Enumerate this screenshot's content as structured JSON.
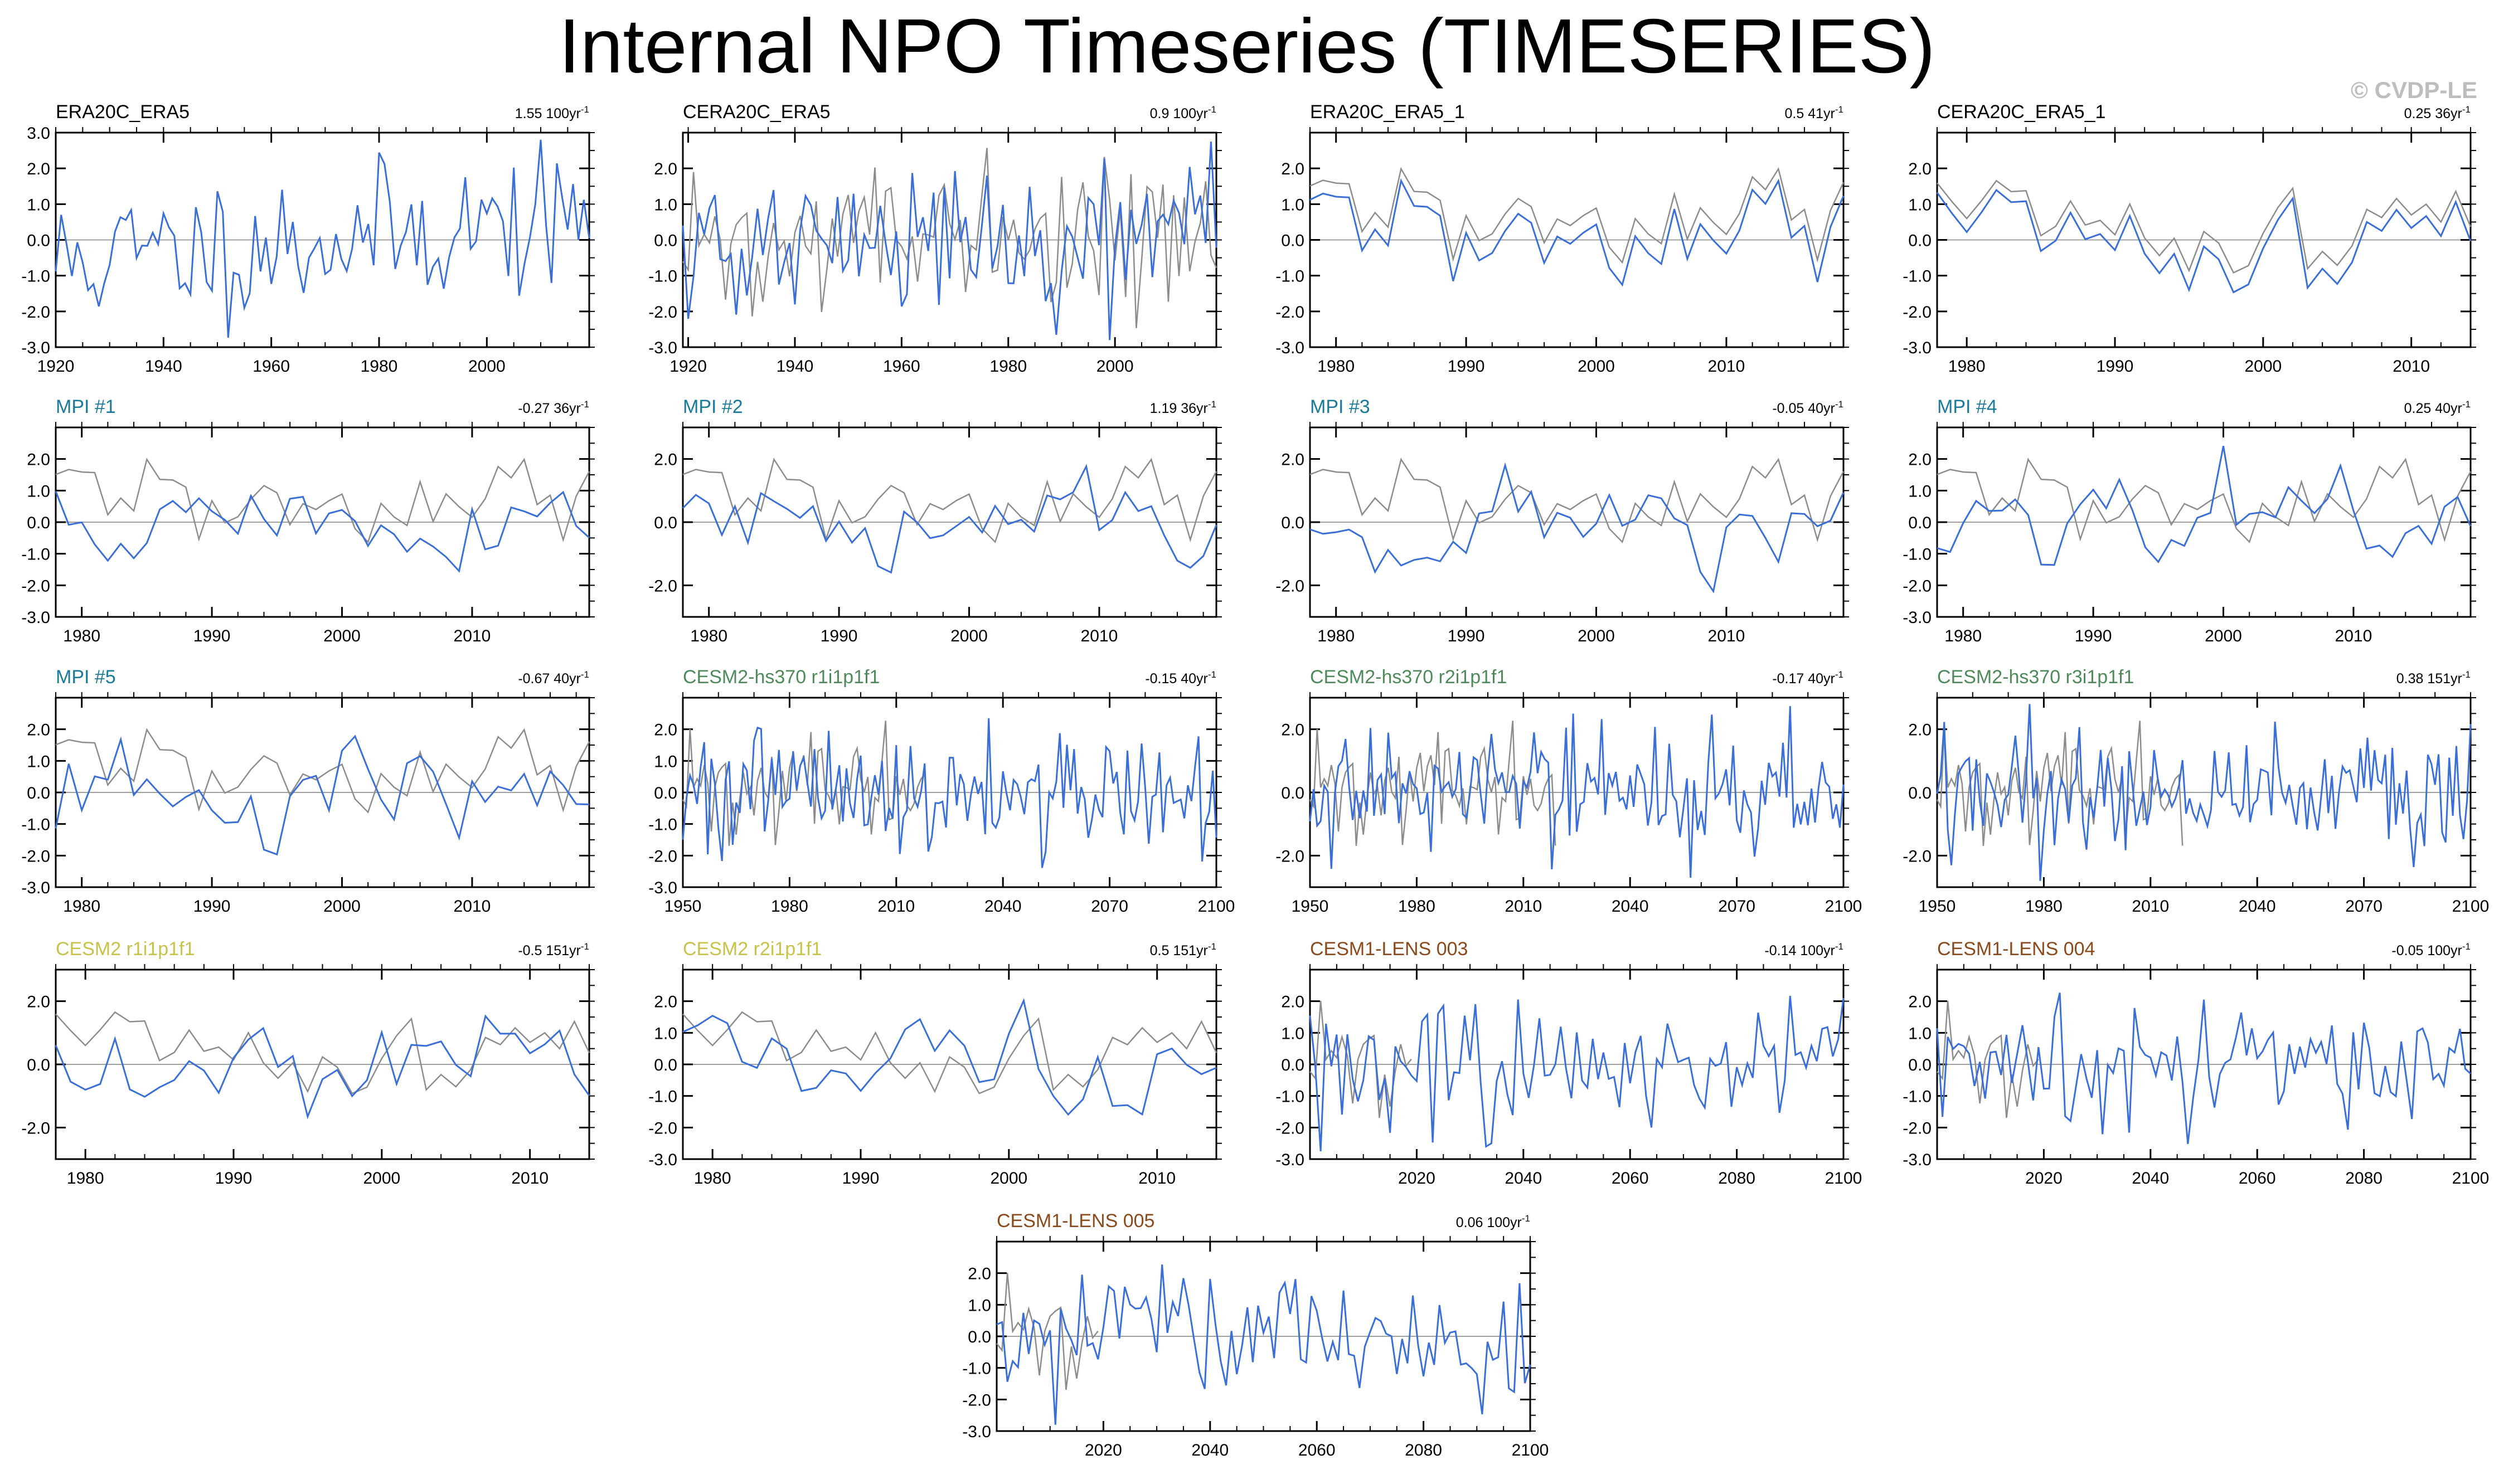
{
  "title": "Internal NPO Timeseries (TIMESERIES)",
  "watermark": "© CVDP-LE",
  "colors": {
    "member_line": "#3a6fd8",
    "obs_line": "#8c8c8c",
    "zero_line": "#a0a0a0",
    "label_black": "#000000",
    "label_mpi": "#1a7a9a",
    "label_cesm2_hs370": "#4f8a5c",
    "label_cesm2": "#c8c24a",
    "label_cesm1_lens": "#8b4a1b"
  },
  "chart_data": [
    {
      "type": "line",
      "title": "ERA20C_ERA5",
      "title_color": "label_black",
      "trend": "1.55 100yr",
      "trend_sup": "-1",
      "x_range": [
        1920,
        2019
      ],
      "x_ticks": [
        1920,
        1940,
        1960,
        1980,
        2000
      ],
      "y_range": [
        -3,
        3
      ],
      "y_ticks": [
        "3.0",
        "2.0",
        "1.0",
        "0.0",
        "-1.0",
        "-2.0",
        "-3.0"
      ],
      "y_values": [
        3,
        2,
        1,
        0,
        -1,
        -2,
        -3
      ],
      "series": [
        {
          "seed": 11,
          "amp": 1.0,
          "trend": 0.6,
          "x_start": 1920,
          "x_end": 2019
        }
      ]
    },
    {
      "type": "line",
      "title": "CERA20C_ERA5",
      "title_color": "label_black",
      "trend": "0.9 100yr",
      "trend_sup": "-1",
      "x_range": [
        1919,
        2019
      ],
      "x_ticks": [
        1920,
        1940,
        1960,
        1980,
        2000
      ],
      "y_range": [
        -3,
        3
      ],
      "y_ticks": [
        "2.0",
        "1.0",
        "0.0",
        "-1.0",
        "-2.0",
        "-3.0"
      ],
      "y_values": [
        2,
        1,
        0,
        -1,
        -2,
        -3
      ],
      "series": [
        {
          "seed": 21,
          "amp": 1.1,
          "trend": 0.35,
          "x_start": 1919,
          "x_end": 2019
        },
        {
          "seed": 22,
          "amp": 1.0,
          "trend": 0.35,
          "x_start": 1919,
          "x_end": 2019,
          "obs": true
        }
      ]
    },
    {
      "type": "line",
      "title": "ERA20C_ERA5_1",
      "title_color": "label_black",
      "trend": "0.5 41yr",
      "trend_sup": "-1",
      "x_range": [
        1978,
        2019
      ],
      "x_ticks": [
        1980,
        1990,
        2000,
        2010
      ],
      "y_range": [
        -3,
        3
      ],
      "y_ticks": [
        "2.0",
        "1.0",
        "0.0",
        "-1.0",
        "-2.0",
        "-3.0"
      ],
      "y_values": [
        2,
        1,
        0,
        -1,
        -2,
        -3
      ],
      "series": [
        {
          "seed": 31,
          "amp": 1.0,
          "trend": 0.0,
          "x_start": 1978,
          "x_end": 2019,
          "smooth": true
        },
        {
          "seed": 31,
          "amp": 0.9,
          "trend": 0.0,
          "x_start": 1978,
          "x_end": 2019,
          "obs": true,
          "offset": 0.5,
          "smooth": true
        }
      ]
    },
    {
      "type": "line",
      "title": "CERA20C_ERA5_1",
      "title_color": "label_black",
      "trend": "0.25 36yr",
      "trend_sup": "-1",
      "x_range": [
        1978,
        2014
      ],
      "x_ticks": [
        1980,
        1990,
        2000,
        2010
      ],
      "y_range": [
        -3,
        3
      ],
      "y_ticks": [
        "2.0",
        "1.0",
        "0.0",
        "-1.0",
        "-2.0",
        "-3.0"
      ],
      "y_values": [
        2,
        1,
        0,
        -1,
        -2,
        -3
      ],
      "series": [
        {
          "seed": 41,
          "amp": 1.0,
          "trend": 0.0,
          "x_start": 1978,
          "x_end": 2014,
          "smooth": true
        },
        {
          "seed": 41,
          "amp": 0.9,
          "trend": 0.0,
          "x_start": 1978,
          "x_end": 2014,
          "obs": true,
          "offset": 0.4,
          "smooth": true
        }
      ]
    },
    {
      "type": "line",
      "title": "MPI #1",
      "title_color": "label_mpi",
      "trend": "-0.27 36yr",
      "trend_sup": "-1",
      "x_range": [
        1978,
        2019
      ],
      "x_ticks": [
        1980,
        1990,
        2000,
        2010
      ],
      "y_range": [
        -3,
        3
      ],
      "y_ticks": [
        "2.0",
        "1.0",
        "0.0",
        "-1.0",
        "-2.0",
        "-3.0"
      ],
      "y_values": [
        2,
        1,
        0,
        -1,
        -2,
        -3
      ],
      "series": [
        {
          "seed": 51,
          "amp": 0.9,
          "trend": 0.0,
          "x_start": 1978,
          "x_end": 2019,
          "smooth": true
        },
        {
          "seed": 31,
          "amp": 0.9,
          "trend": 0.0,
          "x_start": 1978,
          "x_end": 2019,
          "obs": true,
          "offset": 0.5,
          "smooth": true
        }
      ]
    },
    {
      "type": "line",
      "title": "MPI #2",
      "title_color": "label_mpi",
      "trend": "1.19 36yr",
      "trend_sup": "-1",
      "x_range": [
        1978,
        2019
      ],
      "x_ticks": [
        1980,
        1990,
        2000,
        2010
      ],
      "y_range": [
        -3,
        3
      ],
      "y_ticks": [
        "2.0",
        "0.0",
        "-2.0"
      ],
      "y_values": [
        2,
        0,
        -2
      ],
      "series": [
        {
          "seed": 61,
          "amp": 0.9,
          "trend": 0.0,
          "x_start": 1978,
          "x_end": 2019,
          "smooth": true
        },
        {
          "seed": 31,
          "amp": 0.9,
          "trend": 0.0,
          "x_start": 1978,
          "x_end": 2019,
          "obs": true,
          "offset": 0.5,
          "smooth": true
        }
      ]
    },
    {
      "type": "line",
      "title": "MPI #3",
      "title_color": "label_mpi",
      "trend": "-0.05 40yr",
      "trend_sup": "-1",
      "x_range": [
        1978,
        2019
      ],
      "x_ticks": [
        1980,
        1990,
        2000,
        2010
      ],
      "y_range": [
        -3,
        3
      ],
      "y_ticks": [
        "2.0",
        "0.0",
        "-2.0"
      ],
      "y_values": [
        2,
        0,
        -2
      ],
      "series": [
        {
          "seed": 71,
          "amp": 0.9,
          "trend": 0.0,
          "x_start": 1978,
          "x_end": 2019,
          "smooth": true
        },
        {
          "seed": 31,
          "amp": 0.9,
          "trend": 0.0,
          "x_start": 1978,
          "x_end": 2019,
          "obs": true,
          "offset": 0.5,
          "smooth": true
        }
      ]
    },
    {
      "type": "line",
      "title": "MPI #4",
      "title_color": "label_mpi",
      "trend": "0.25 40yr",
      "trend_sup": "-1",
      "x_range": [
        1978,
        2019
      ],
      "x_ticks": [
        1980,
        1990,
        2000,
        2010
      ],
      "y_range": [
        -3,
        3
      ],
      "y_ticks": [
        "2.0",
        "1.0",
        "0.0",
        "-1.0",
        "-2.0",
        "-3.0"
      ],
      "y_values": [
        2,
        1,
        0,
        -1,
        -2,
        -3
      ],
      "series": [
        {
          "seed": 81,
          "amp": 0.9,
          "trend": 0.0,
          "x_start": 1978,
          "x_end": 2019,
          "smooth": true
        },
        {
          "seed": 31,
          "amp": 0.9,
          "trend": 0.0,
          "x_start": 1978,
          "x_end": 2019,
          "obs": true,
          "offset": 0.5,
          "smooth": true
        }
      ]
    },
    {
      "type": "line",
      "title": "MPI #5",
      "title_color": "label_mpi",
      "trend": "-0.67 40yr",
      "trend_sup": "-1",
      "x_range": [
        1978,
        2019
      ],
      "x_ticks": [
        1980,
        1990,
        2000,
        2010
      ],
      "y_range": [
        -3,
        3
      ],
      "y_ticks": [
        "2.0",
        "1.0",
        "0.0",
        "-1.0",
        "-2.0",
        "-3.0"
      ],
      "y_values": [
        2,
        1,
        0,
        -1,
        -2,
        -3
      ],
      "series": [
        {
          "seed": 91,
          "amp": 0.9,
          "trend": 0.0,
          "x_start": 1978,
          "x_end": 2019,
          "smooth": true
        },
        {
          "seed": 31,
          "amp": 0.9,
          "trend": 0.0,
          "x_start": 1978,
          "x_end": 2019,
          "obs": true,
          "offset": 0.5,
          "smooth": true
        }
      ]
    },
    {
      "type": "line",
      "title": "CESM2-hs370 r1i1p1f1",
      "title_color": "label_cesm2_hs370",
      "trend": "-0.15 40yr",
      "trend_sup": "-1",
      "x_range": [
        1950,
        2100
      ],
      "x_ticks": [
        1950,
        1980,
        2010,
        2040,
        2070,
        2100
      ],
      "y_range": [
        -3,
        3
      ],
      "y_ticks": [
        "2.0",
        "1.0",
        "0.0",
        "-1.0",
        "-2.0",
        "-3.0"
      ],
      "y_values": [
        2,
        1,
        0,
        -1,
        -2,
        -3
      ],
      "series": [
        {
          "seed": 101,
          "amp": 1.0,
          "trend": 0.0,
          "x_start": 1950,
          "x_end": 2100
        },
        {
          "seed": 22,
          "amp": 0.9,
          "trend": 0.0,
          "x_start": 1950,
          "x_end": 2019,
          "obs": true
        }
      ]
    },
    {
      "type": "line",
      "title": "CESM2-hs370 r2i1p1f1",
      "title_color": "label_cesm2_hs370",
      "trend": "-0.17 40yr",
      "trend_sup": "-1",
      "x_range": [
        1950,
        2100
      ],
      "x_ticks": [
        1950,
        1980,
        2010,
        2040,
        2070,
        2100
      ],
      "y_range": [
        -3,
        3
      ],
      "y_ticks": [
        "2.0",
        "0.0",
        "-2.0"
      ],
      "y_values": [
        2,
        0,
        -2
      ],
      "series": [
        {
          "seed": 111,
          "amp": 1.0,
          "trend": 0.0,
          "x_start": 1950,
          "x_end": 2100
        },
        {
          "seed": 22,
          "amp": 0.9,
          "trend": 0.0,
          "x_start": 1950,
          "x_end": 2019,
          "obs": true
        }
      ]
    },
    {
      "type": "line",
      "title": "CESM2-hs370 r3i1p1f1",
      "title_color": "label_cesm2_hs370",
      "trend": "0.38 151yr",
      "trend_sup": "-1",
      "x_range": [
        1950,
        2100
      ],
      "x_ticks": [
        1950,
        1980,
        2010,
        2040,
        2070,
        2100
      ],
      "y_range": [
        -3,
        3
      ],
      "y_ticks": [
        "2.0",
        "0.0",
        "-2.0"
      ],
      "y_values": [
        2,
        0,
        -2
      ],
      "series": [
        {
          "seed": 121,
          "amp": 1.0,
          "trend": 0.0,
          "x_start": 1950,
          "x_end": 2100
        },
        {
          "seed": 22,
          "amp": 0.9,
          "trend": 0.0,
          "x_start": 1950,
          "x_end": 2019,
          "obs": true
        }
      ]
    },
    {
      "type": "line",
      "title": "CESM2 r1i1p1f1",
      "title_color": "label_cesm2",
      "trend": "-0.5 151yr",
      "trend_sup": "-1",
      "x_range": [
        1978,
        2014
      ],
      "x_ticks": [
        1980,
        1990,
        2000,
        2010
      ],
      "y_range": [
        -3,
        3
      ],
      "y_ticks": [
        "2.0",
        "0.0",
        "-2.0"
      ],
      "y_values": [
        2,
        0,
        -2
      ],
      "series": [
        {
          "seed": 131,
          "amp": 0.9,
          "trend": 0.0,
          "x_start": 1978,
          "x_end": 2014,
          "smooth": true
        },
        {
          "seed": 41,
          "amp": 0.9,
          "trend": 0.0,
          "x_start": 1978,
          "x_end": 2014,
          "obs": true,
          "offset": 0.4,
          "smooth": true
        }
      ]
    },
    {
      "type": "line",
      "title": "CESM2 r2i1p1f1",
      "title_color": "label_cesm2",
      "trend": "0.5 151yr",
      "trend_sup": "-1",
      "x_range": [
        1978,
        2014
      ],
      "x_ticks": [
        1980,
        1990,
        2000,
        2010
      ],
      "y_range": [
        -3,
        3
      ],
      "y_ticks": [
        "2.0",
        "1.0",
        "0.0",
        "-1.0",
        "-2.0",
        "-3.0"
      ],
      "y_values": [
        2,
        1,
        0,
        -1,
        -2,
        -3
      ],
      "series": [
        {
          "seed": 141,
          "amp": 0.9,
          "trend": 0.0,
          "x_start": 1978,
          "x_end": 2014,
          "smooth": true
        },
        {
          "seed": 41,
          "amp": 0.9,
          "trend": 0.0,
          "x_start": 1978,
          "x_end": 2014,
          "obs": true,
          "offset": 0.4,
          "smooth": true
        }
      ]
    },
    {
      "type": "line",
      "title": "CESM1-LENS 003",
      "title_color": "label_cesm1_lens",
      "trend": "-0.14 100yr",
      "trend_sup": "-1",
      "x_range": [
        2000,
        2100
      ],
      "x_ticks": [
        2020,
        2040,
        2060,
        2080,
        2100
      ],
      "y_range": [
        -3,
        3
      ],
      "y_ticks": [
        "2.0",
        "1.0",
        "0.0",
        "-1.0",
        "-2.0",
        "-3.0"
      ],
      "y_values": [
        2,
        1,
        0,
        -1,
        -2,
        -3
      ],
      "series": [
        {
          "seed": 151,
          "amp": 1.0,
          "trend": 0.0,
          "x_start": 2000,
          "x_end": 2100
        },
        {
          "seed": 22,
          "amp": 0.9,
          "trend": 0.0,
          "x_start": 2000,
          "x_end": 2019,
          "obs": true
        }
      ]
    },
    {
      "type": "line",
      "title": "CESM1-LENS 004",
      "title_color": "label_cesm1_lens",
      "trend": "-0.05 100yr",
      "trend_sup": "-1",
      "x_range": [
        2000,
        2100
      ],
      "x_ticks": [
        2020,
        2040,
        2060,
        2080,
        2100
      ],
      "y_range": [
        -3,
        3
      ],
      "y_ticks": [
        "2.0",
        "1.0",
        "0.0",
        "-1.0",
        "-2.0",
        "-3.0"
      ],
      "y_values": [
        2,
        1,
        0,
        -1,
        -2,
        -3
      ],
      "series": [
        {
          "seed": 161,
          "amp": 1.0,
          "trend": 0.0,
          "x_start": 2000,
          "x_end": 2100
        },
        {
          "seed": 22,
          "amp": 0.9,
          "trend": 0.0,
          "x_start": 2000,
          "x_end": 2019,
          "obs": true
        }
      ]
    },
    {
      "type": "line",
      "title": "CESM1-LENS 005",
      "title_color": "label_cesm1_lens",
      "trend": "0.06 100yr",
      "trend_sup": "-1",
      "x_range": [
        2000,
        2100
      ],
      "x_ticks": [
        2020,
        2040,
        2060,
        2080,
        2100
      ],
      "y_range": [
        -3,
        3
      ],
      "y_ticks": [
        "2.0",
        "1.0",
        "0.0",
        "-1.0",
        "-2.0",
        "-3.0"
      ],
      "y_values": [
        2,
        1,
        0,
        -1,
        -2,
        -3
      ],
      "series": [
        {
          "seed": 171,
          "amp": 1.0,
          "trend": 0.0,
          "x_start": 2000,
          "x_end": 2100
        },
        {
          "seed": 22,
          "amp": 0.9,
          "trend": 0.0,
          "x_start": 2000,
          "x_end": 2019,
          "obs": true
        }
      ]
    }
  ]
}
